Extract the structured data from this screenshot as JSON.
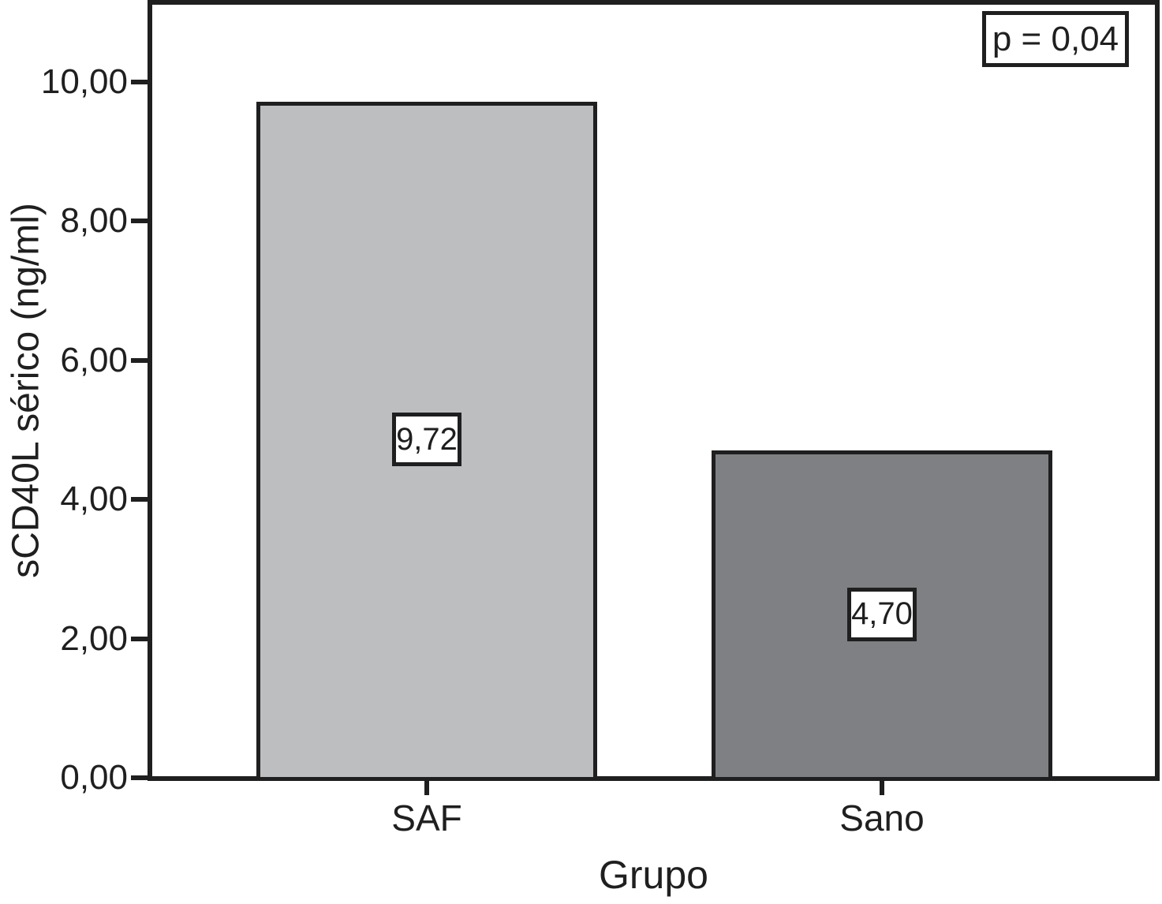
{
  "chart_data": {
    "type": "bar",
    "title": "",
    "categories": [
      "SAF",
      "Sano"
    ],
    "values": [
      9.72,
      4.7
    ],
    "value_labels": [
      "9,72",
      "4,70"
    ],
    "bar_colors": [
      "#bdbec0",
      "#7e8084"
    ],
    "xlabel": "Grupo",
    "ylabel": "sCD40L sérico (ng/ml)",
    "ylim": [
      0,
      11.1
    ],
    "yticks": [
      0,
      2,
      4,
      6,
      8,
      10
    ],
    "ytick_labels": [
      "0,00",
      "2,00",
      "4,00",
      "6,00",
      "8,00",
      "10,00"
    ],
    "annotation": "p = 0,04",
    "grid": false,
    "legend": null,
    "frame": true,
    "colors": {
      "axis": "#1f1f1f",
      "background": "#ffffff",
      "bar_saf": "#bdbec0",
      "bar_sano": "#7e8084"
    }
  }
}
